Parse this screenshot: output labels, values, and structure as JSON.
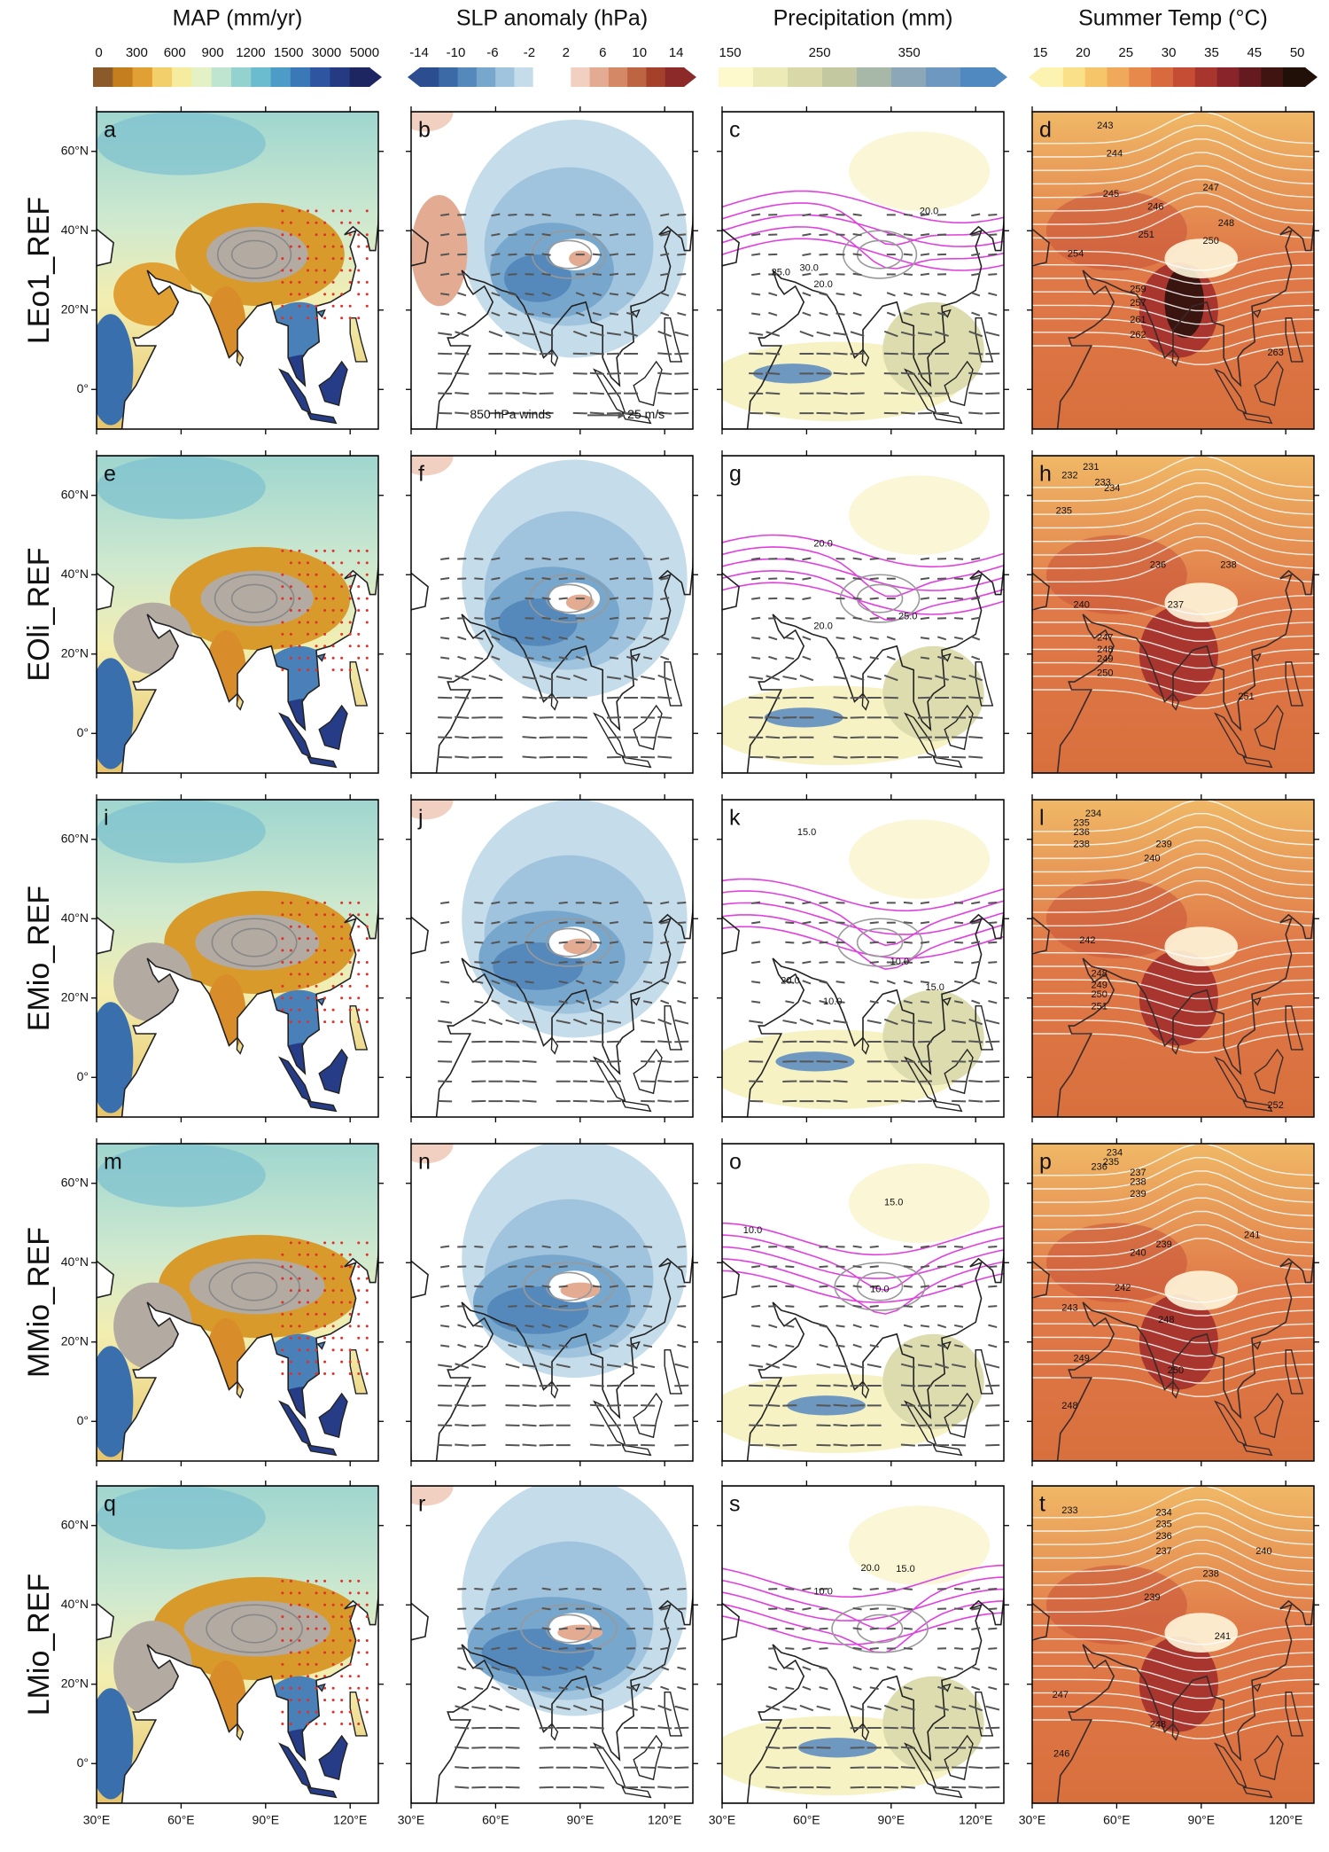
{
  "headers": [
    "MAP (mm/yr)",
    "SLP anomaly (hPa)",
    "Precipitation (mm)",
    "Summer Temp (°C)"
  ],
  "colorbars": [
    {
      "ticks": [
        0,
        300,
        600,
        900,
        1200,
        1500,
        3000,
        5000
      ],
      "extend": "max",
      "colors": [
        "#8a5a2a",
        "#c47e1e",
        "#e0a033",
        "#f2cf6a",
        "#f6eca0",
        "#e4f1c4",
        "#bfe4d0",
        "#94d2cf",
        "#6cbcd0",
        "#4d9cc8",
        "#3a78b8",
        "#2d55a0",
        "#243a82",
        "#1d2660"
      ]
    },
    {
      "ticks": [
        -14,
        -10,
        -6,
        -2,
        2,
        6,
        10,
        14
      ],
      "extend": "both",
      "colors": [
        "#2c4d8f",
        "#3b6aa6",
        "#5589bc",
        "#78a7cd",
        "#a0c4dd",
        "#c5dcea",
        "#ffffff",
        "#ffffff",
        "#f1d0c2",
        "#e3ab92",
        "#d48866",
        "#bd6443",
        "#a5402a",
        "#8c2a2a"
      ]
    },
    {
      "ticks": [
        150,
        250,
        350
      ],
      "extend": "max",
      "colors": [
        "#fdf9cc",
        "#ecebb8",
        "#d8d8a8",
        "#c3c8a0",
        "#a8b8a8",
        "#8ca8b8",
        "#6f98c0",
        "#5088c0"
      ]
    },
    {
      "ticks": [
        15,
        20,
        25,
        30,
        35,
        45,
        50
      ],
      "extend": "both",
      "colors": [
        "#fdf3b0",
        "#fbe08a",
        "#f6c56a",
        "#f0a85a",
        "#e6894a",
        "#d86a3e",
        "#c44d34",
        "#a8352e",
        "#88242a",
        "#641a1e",
        "#401410",
        "#201008"
      ]
    }
  ],
  "rows": [
    {
      "label": "LEo1_REF",
      "panels": [
        {
          "letter": "a"
        },
        {
          "letter": "b",
          "wind_label": "850 hPa winds",
          "wind_scale": "25 m/s"
        },
        {
          "letter": "c",
          "contour_labels": [
            "20.0",
            "25.0",
            "30.0",
            "20.0"
          ]
        },
        {
          "letter": "d",
          "contour_labels": [
            243,
            244,
            245,
            247,
            246,
            248,
            251,
            250,
            254,
            259,
            257,
            261,
            262,
            263
          ]
        }
      ]
    },
    {
      "label": "EOli_REF",
      "panels": [
        {
          "letter": "e"
        },
        {
          "letter": "f"
        },
        {
          "letter": "g",
          "contour_labels": [
            "20.0",
            "25.0",
            "20.0"
          ]
        },
        {
          "letter": "h",
          "contour_labels": [
            232,
            231,
            233,
            234,
            235,
            236,
            238,
            237,
            240,
            247,
            248,
            249,
            250,
            251
          ]
        }
      ]
    },
    {
      "label": "EMio_REF",
      "panels": [
        {
          "letter": "i"
        },
        {
          "letter": "j"
        },
        {
          "letter": "k",
          "contour_labels": [
            "15.0",
            "10.0",
            "20.0",
            "15.0",
            "10.0"
          ]
        },
        {
          "letter": "l",
          "contour_labels": [
            234,
            235,
            236,
            238,
            239,
            240,
            242,
            248,
            249,
            250,
            251,
            252
          ]
        }
      ]
    },
    {
      "label": "MMio_REF",
      "panels": [
        {
          "letter": "m"
        },
        {
          "letter": "n"
        },
        {
          "letter": "o",
          "contour_labels": [
            "10.0",
            "15.0",
            "10.0"
          ]
        },
        {
          "letter": "p",
          "contour_labels": [
            234,
            235,
            236,
            237,
            238,
            239,
            241,
            239,
            240,
            242,
            243,
            248,
            249,
            250,
            248
          ]
        }
      ]
    },
    {
      "label": "LMio_REF",
      "panels": [
        {
          "letter": "q"
        },
        {
          "letter": "r"
        },
        {
          "letter": "s",
          "contour_labels": [
            "20.0",
            "15.0",
            "10.0"
          ]
        },
        {
          "letter": "t",
          "contour_labels": [
            233,
            234,
            235,
            236,
            237,
            240,
            238,
            239,
            241,
            247,
            248,
            246
          ]
        }
      ]
    }
  ],
  "lat_ticks": [
    {
      "value": 60,
      "label": "60°N"
    },
    {
      "value": 40,
      "label": "40°N"
    },
    {
      "value": 20,
      "label": "20°N"
    },
    {
      "value": 0,
      "label": "0°"
    }
  ],
  "lon_ticks": [
    {
      "value": 30,
      "label": "30°E"
    },
    {
      "value": 60,
      "label": "60°E"
    },
    {
      "value": 90,
      "label": "90°E"
    },
    {
      "value": 120,
      "label": "120°E"
    }
  ]
}
